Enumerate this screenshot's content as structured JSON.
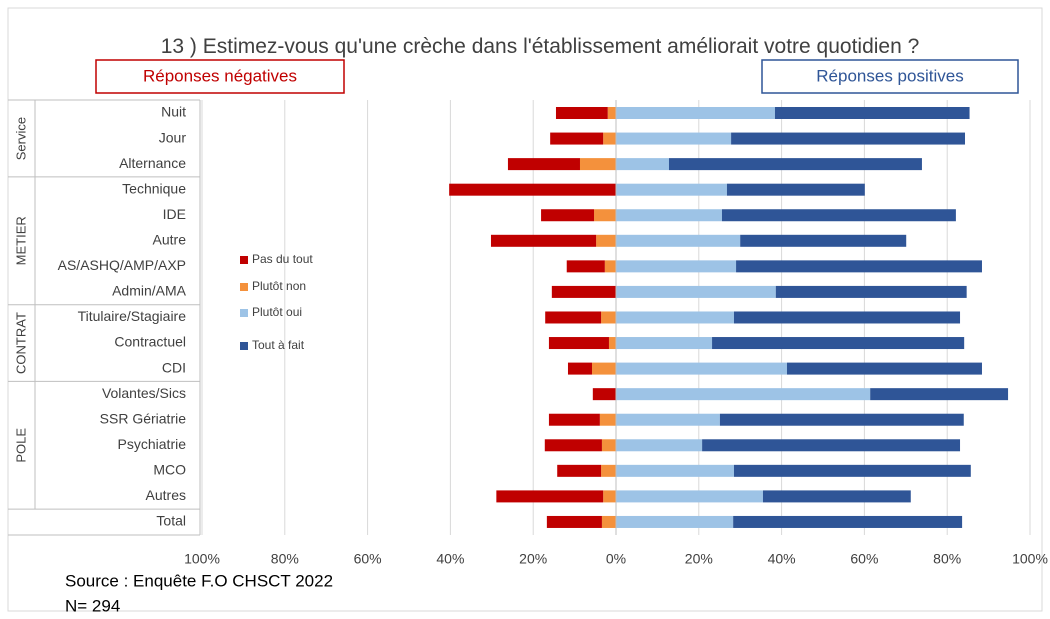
{
  "chart_data": {
    "type": "diverging_bar",
    "title": "13 ) Estimez-vous qu'une crèche dans l'établissement améliorait votre quotidien ?",
    "negative_label": "Réponses négatives",
    "positive_label": "Réponses positives",
    "notes": [
      "Source : Enquête F.O CHSCT 2022",
      "N= 294"
    ],
    "groups": [
      {
        "name": "Service",
        "categories": [
          "Nuit",
          "Jour",
          "Alternance"
        ]
      },
      {
        "name": "METIER",
        "categories": [
          "Technique",
          "IDE",
          "Autre",
          "AS/ASHQ/AMP/AXP",
          "Admin/AMA"
        ]
      },
      {
        "name": "CONTRAT",
        "categories": [
          "Titulaire/Stagiaire",
          "Contractuel",
          "CDI"
        ]
      },
      {
        "name": "POLE",
        "categories": [
          "Volantes/Sics",
          "SSR Gériatrie",
          "Psychiatrie",
          "MCO",
          "Autres"
        ]
      },
      {
        "categories": [
          "Total"
        ]
      }
    ],
    "series": [
      {
        "name": "Pas du tout",
        "color": "#c00000",
        "values": [
          -12.5,
          -12.8,
          -17.4,
          -40.3,
          -12.8,
          -25.4,
          -9.2,
          -15.5,
          -13.5,
          -14.5,
          -5.8,
          -5.6,
          -12.3,
          -13.8,
          -10.6,
          -25.8,
          -13.3
        ]
      },
      {
        "name": "Plutôt non",
        "color": "#f4913c",
        "values": [
          -2,
          -3.1,
          -8.7,
          0,
          -5.3,
          -4.8,
          -2.7,
          0,
          -3.6,
          -1.7,
          -5.8,
          0,
          -3.9,
          -3.4,
          -3.6,
          -3.1,
          -3.4
        ]
      },
      {
        "name": "Plutôt oui",
        "color": "#9dc3e6",
        "values": [
          38.4,
          27.8,
          12.8,
          26.8,
          25.6,
          30,
          29,
          38.6,
          28.5,
          23.2,
          41.3,
          61.4,
          25.1,
          20.8,
          28.5,
          35.5,
          28.3
        ]
      },
      {
        "name": "Tout à fait",
        "color": "#2f5597",
        "values": [
          47,
          56.5,
          61.1,
          33.3,
          56.5,
          40.1,
          59.4,
          46.1,
          54.6,
          60.9,
          47.1,
          33.3,
          58.9,
          62.3,
          57.2,
          35.7,
          55.3
        ]
      }
    ],
    "xlim": [
      -100,
      100
    ],
    "xticks": [
      {
        "value": -100,
        "label": "100%"
      },
      {
        "value": -80,
        "label": "80%"
      },
      {
        "value": -60,
        "label": "60%"
      },
      {
        "value": -40,
        "label": "40%"
      },
      {
        "value": -20,
        "label": "20%"
      },
      {
        "value": 0,
        "label": "0%"
      },
      {
        "value": 20,
        "label": "20%"
      },
      {
        "value": 40,
        "label": "40%"
      },
      {
        "value": 60,
        "label": "60%"
      },
      {
        "value": 80,
        "label": "80%"
      },
      {
        "value": 100,
        "label": "100%"
      }
    ],
    "grid": true
  }
}
